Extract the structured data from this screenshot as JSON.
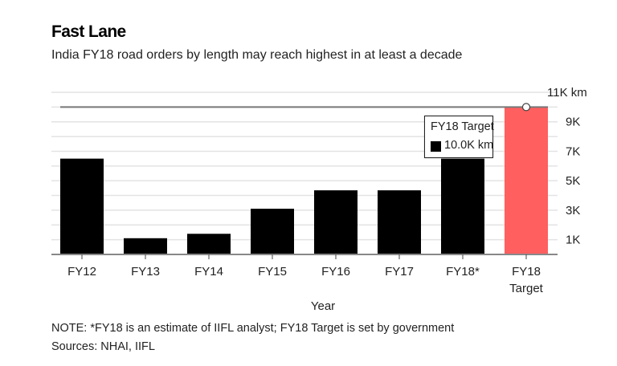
{
  "header": {
    "title": "Fast Lane",
    "subtitle": "India FY18 road orders by length may reach highest in at least a decade"
  },
  "tooltip": {
    "title": "FY18 Target",
    "value": "10.0K km"
  },
  "footer": {
    "note": "NOTE: *FY18 is an estimate of IIFL analyst; FY18 Target is set by government",
    "sources": "Sources: NHAI, IIFL"
  },
  "colors": {
    "bar": "#000000",
    "target_bar": "#ff5f5f",
    "gridline": "#e3e3e3",
    "target_line": "#777777",
    "axis": "#888888"
  },
  "chart_data": {
    "type": "bar",
    "title": "Fast Lane",
    "subtitle": "India FY18 road orders by length may reach highest in at least a decade",
    "xlabel": "Year",
    "ylabel": "",
    "y_unit": "km",
    "categories": [
      "FY12",
      "FY13",
      "FY14",
      "FY15",
      "FY16",
      "FY17",
      "FY18*",
      "FY18 Target"
    ],
    "category_lines": [
      [
        "FY12"
      ],
      [
        "FY13"
      ],
      [
        "FY14"
      ],
      [
        "FY15"
      ],
      [
        "FY16"
      ],
      [
        "FY17"
      ],
      [
        "FY18*"
      ],
      [
        "FY18",
        "Target"
      ]
    ],
    "values": [
      6500,
      1100,
      1400,
      3100,
      4350,
      4350,
      6500,
      10000
    ],
    "highlight_index": 7,
    "ylim": [
      0,
      11000
    ],
    "y_ticks": [
      1000,
      3000,
      5000,
      7000,
      9000,
      11000
    ],
    "y_tick_labels": [
      "1K",
      "3K",
      "5K",
      "7K",
      "9K",
      "11K km"
    ],
    "y_axis_position": "right",
    "grid": true,
    "grid_step": 1000,
    "reference_line": {
      "value": 10000,
      "label": "FY18 Target"
    },
    "annotation": {
      "target": "FY18 Target",
      "text": "10.0K km"
    }
  }
}
